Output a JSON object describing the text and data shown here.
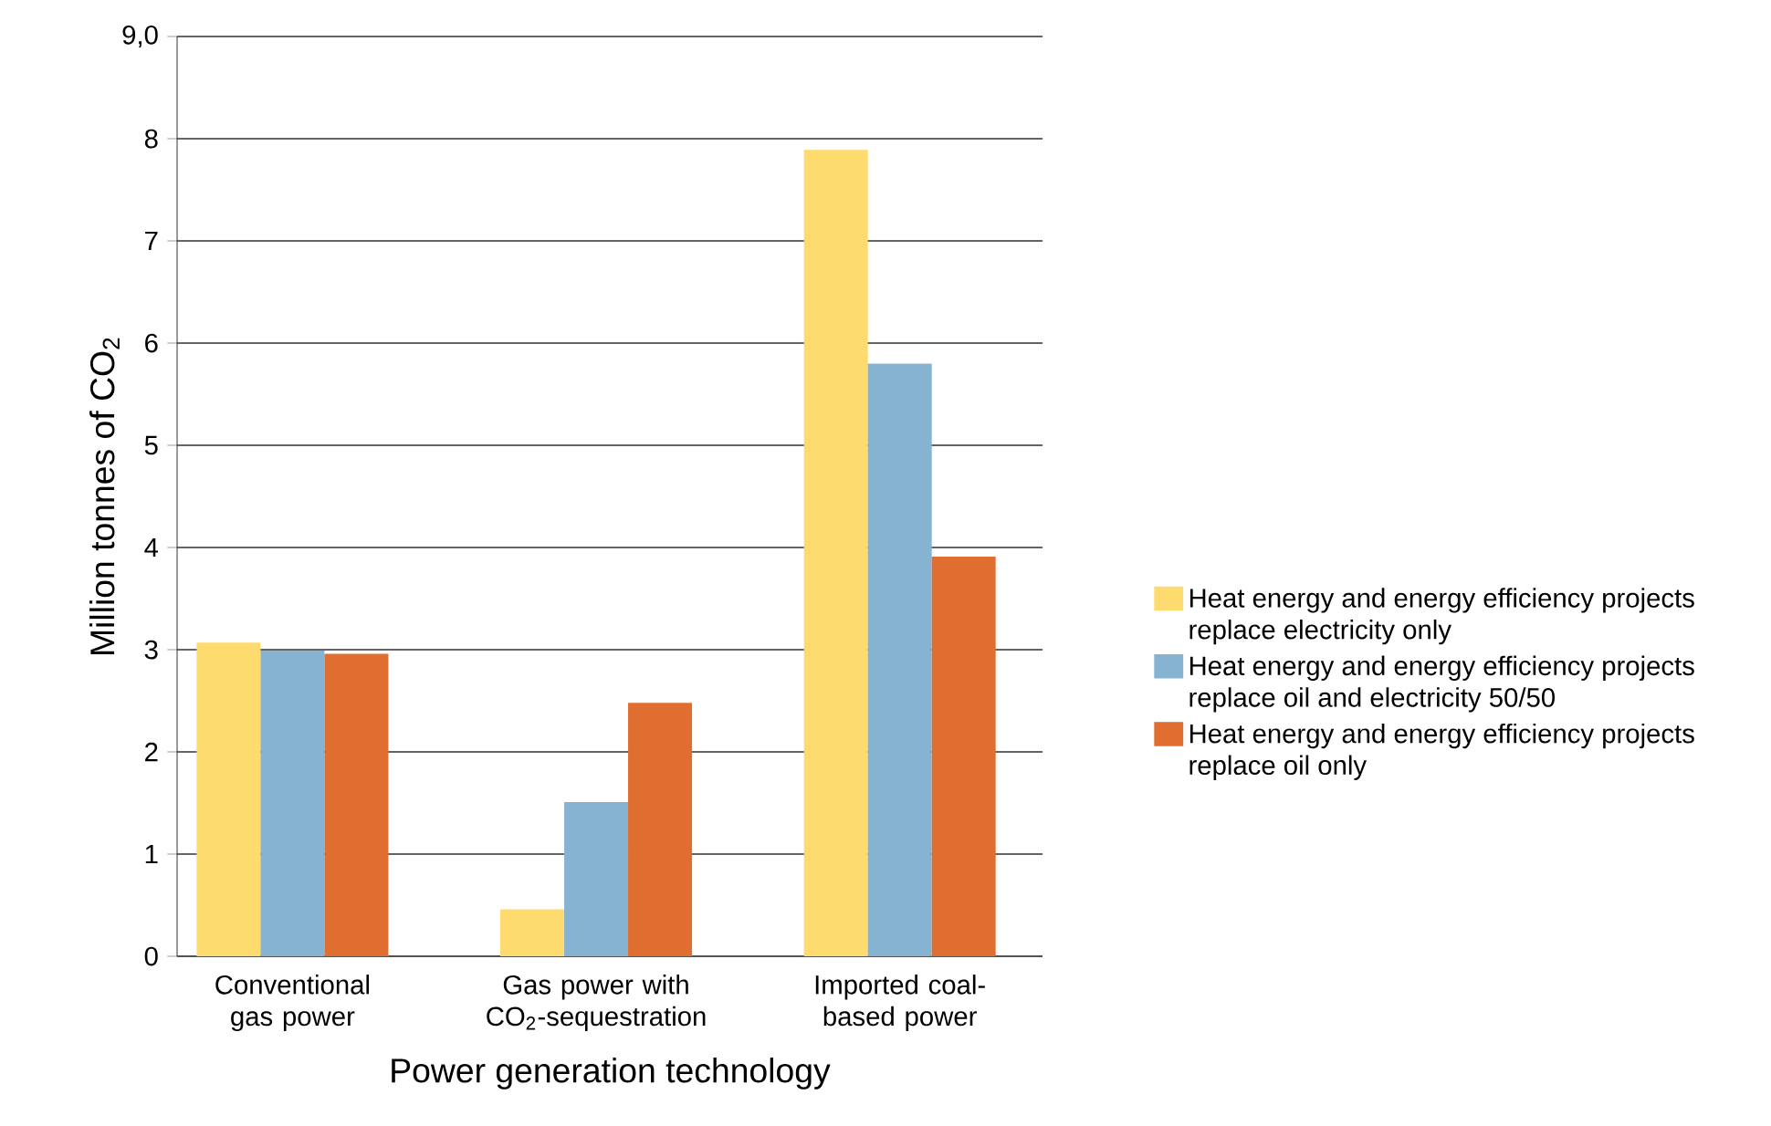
{
  "chart_data": {
    "type": "bar",
    "xlabel": "Power generation technology",
    "ylabel": "Million tonnes of  CO$_{2}$",
    "categories": [
      "Conventional gas power",
      "Gas power with CO$_{2}$-sequestration",
      "Imported coal-based power"
    ],
    "series": [
      {
        "name": "Heat energy and energy efficiency projects replace electricity only",
        "color": "#fddb6e",
        "values": [
          3.07,
          0.46,
          7.89
        ]
      },
      {
        "name": "Heat energy and energy efficiency projects replace oil and electricity 50/50",
        "color": "#86b3d1",
        "values": [
          2.99,
          1.51,
          5.8
        ]
      },
      {
        "name": "Heat energy and energy efficiency projects replace oil only",
        "color": "#e06e31",
        "values": [
          2.96,
          2.48,
          3.91
        ]
      }
    ],
    "ylim": [
      0,
      9
    ],
    "yticks": [
      0,
      1,
      2,
      3,
      4,
      5,
      6,
      7,
      8,
      {
        "value": 9,
        "label": "9,0"
      }
    ],
    "grid": "y",
    "legend": "right"
  }
}
